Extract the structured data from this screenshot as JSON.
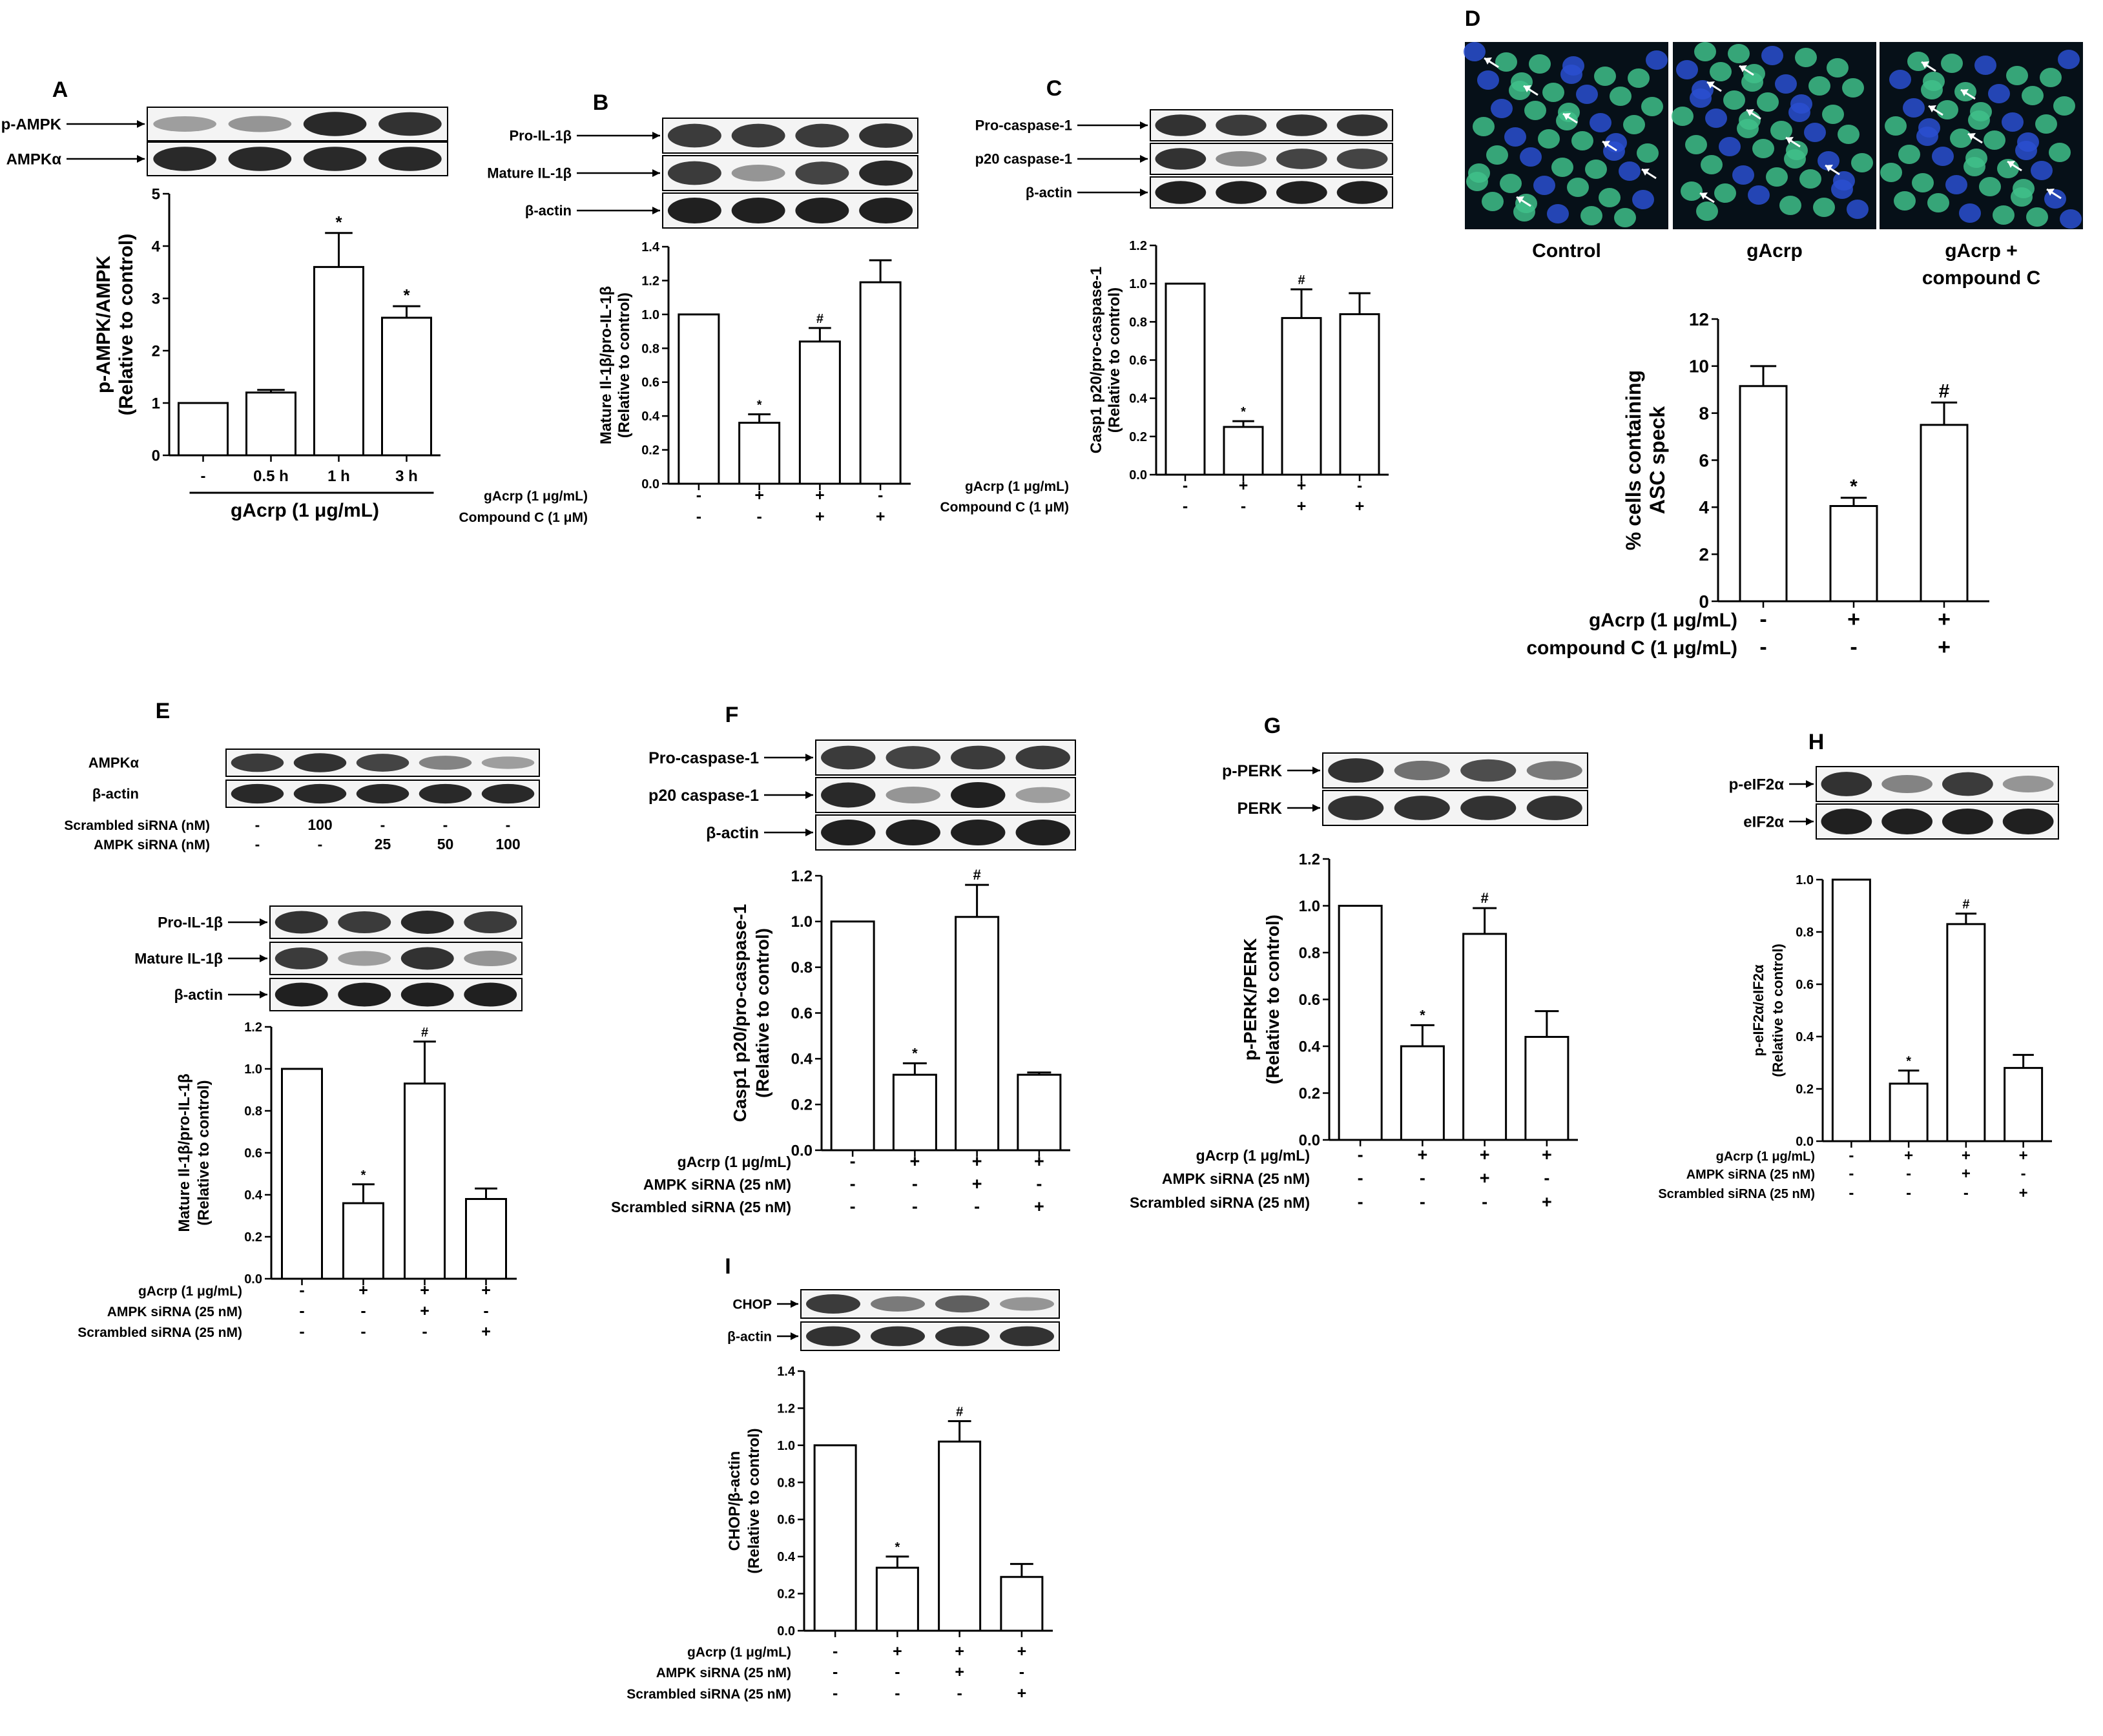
{
  "figure": {
    "panels": [
      {
        "letter": "A",
        "blot_rows": [
          {
            "label": "p-AMPK",
            "arrow": true,
            "bands": [
              0.25,
              0.3,
              0.9,
              0.85
            ]
          },
          {
            "label": "AMPKα",
            "arrow": true,
            "bands": [
              0.9,
              0.9,
              0.9,
              0.9
            ]
          }
        ],
        "ylabel": [
          "p-AMPK/AMPK",
          "(Relative to control)"
        ],
        "ylim": [
          0,
          5
        ],
        "yticks": [
          0,
          1,
          2,
          3,
          4,
          5
        ],
        "bars": [
          {
            "value": 1.0,
            "error": 0.0,
            "mark": ""
          },
          {
            "value": 1.2,
            "error": 0.05,
            "mark": ""
          },
          {
            "value": 3.6,
            "error": 0.65,
            "mark": "*"
          },
          {
            "value": 2.63,
            "error": 0.22,
            "mark": "*"
          }
        ],
        "tick_labels": [
          "-",
          "0.5 h",
          "1 h",
          "3 h"
        ],
        "group_label": "gAcrp (1 μg/mL)"
      },
      {
        "letter": "B",
        "blot_rows": [
          {
            "label": "Pro-IL-1β",
            "arrow": true,
            "bands": [
              0.8,
              0.8,
              0.8,
              0.85
            ]
          },
          {
            "label": "Mature IL-1β",
            "arrow": true,
            "bands": [
              0.8,
              0.3,
              0.75,
              0.9
            ]
          },
          {
            "label": "β-actin",
            "arrow": true,
            "bands": [
              0.95,
              0.95,
              0.95,
              0.95
            ]
          }
        ],
        "ylabel": [
          "Mature Il-1β/pro-IL-1β",
          "(Relative to control)"
        ],
        "ylim": [
          0,
          1.4
        ],
        "yticks": [
          0.0,
          0.2,
          0.4,
          0.6,
          0.8,
          1.0,
          1.2,
          1.4
        ],
        "bars": [
          {
            "value": 1.0,
            "error": 0.0,
            "mark": ""
          },
          {
            "value": 0.36,
            "error": 0.05,
            "mark": "*"
          },
          {
            "value": 0.84,
            "error": 0.08,
            "mark": "#"
          },
          {
            "value": 1.19,
            "error": 0.13,
            "mark": ""
          }
        ],
        "conditions": [
          {
            "label": "gAcrp (1 μg/mL)",
            "signs": [
              "-",
              "+",
              "+",
              "-"
            ]
          },
          {
            "label": "Compound C (1 μM)",
            "signs": [
              "-",
              "-",
              "+",
              "+"
            ]
          }
        ]
      },
      {
        "letter": "C",
        "blot_rows": [
          {
            "label": "Pro-caspase-1",
            "arrow": true,
            "bands": [
              0.85,
              0.8,
              0.85,
              0.85
            ]
          },
          {
            "label": "p20 caspase-1",
            "arrow": true,
            "bands": [
              0.85,
              0.35,
              0.75,
              0.75
            ]
          },
          {
            "label": "β-actin",
            "arrow": true,
            "bands": [
              0.95,
              0.95,
              0.95,
              0.95
            ]
          }
        ],
        "ylabel": [
          "Casp1 p20/pro-caspase-1",
          "(Relative to control)"
        ],
        "ylim": [
          0,
          1.2
        ],
        "yticks": [
          0.0,
          0.2,
          0.4,
          0.6,
          0.8,
          1.0,
          1.2
        ],
        "bars": [
          {
            "value": 1.0,
            "error": 0.0,
            "mark": ""
          },
          {
            "value": 0.25,
            "error": 0.03,
            "mark": "*"
          },
          {
            "value": 0.82,
            "error": 0.15,
            "mark": "#"
          },
          {
            "value": 0.84,
            "error": 0.11,
            "mark": ""
          }
        ],
        "conditions": [
          {
            "label": "gAcrp (1 μg/mL)",
            "signs": [
              "-",
              "+",
              "+",
              "-"
            ]
          },
          {
            "label": "Compound C (1 μM)",
            "signs": [
              "-",
              "-",
              "+",
              "+"
            ]
          }
        ]
      },
      {
        "letter": "D",
        "images": [
          "Control",
          "gAcrp",
          "gAcrp +",
          "compound C"
        ],
        "ylabel": [
          "% cells containing",
          "ASC speck"
        ],
        "ylim": [
          0,
          12
        ],
        "yticks": [
          0,
          2,
          4,
          6,
          8,
          10,
          12
        ],
        "bars": [
          {
            "value": 9.15,
            "error": 0.85,
            "mark": ""
          },
          {
            "value": 4.05,
            "error": 0.35,
            "mark": "*"
          },
          {
            "value": 7.5,
            "error": 0.95,
            "mark": "#"
          }
        ],
        "conditions": [
          {
            "label": "gAcrp (1 μg/mL)",
            "signs": [
              "-",
              "+",
              "+"
            ]
          },
          {
            "label": "compound C (1 μg/mL)",
            "signs": [
              "-",
              "-",
              "+"
            ]
          }
        ]
      },
      {
        "letter": "E",
        "blot_rows_top": [
          {
            "label": "AMPKα",
            "arrow": false,
            "bands": [
              0.8,
              0.85,
              0.75,
              0.4,
              0.25
            ]
          },
          {
            "label": "β-actin",
            "arrow": false,
            "bands": [
              0.9,
              0.9,
              0.9,
              0.9,
              0.9
            ]
          }
        ],
        "top_conditions": [
          {
            "label": "Scrambled siRNA (nM)",
            "signs": [
              "-",
              "100",
              "-",
              "-",
              "-"
            ]
          },
          {
            "label": "AMPK siRNA (nM)",
            "signs": [
              "-",
              "-",
              "25",
              "50",
              "100"
            ]
          }
        ],
        "blot_rows": [
          {
            "label": "Pro-IL-1β",
            "arrow": true,
            "bands": [
              0.85,
              0.8,
              0.9,
              0.8
            ]
          },
          {
            "label": "Mature IL-1β",
            "arrow": true,
            "bands": [
              0.8,
              0.25,
              0.85,
              0.3
            ]
          },
          {
            "label": "β-actin",
            "arrow": true,
            "bands": [
              0.95,
              0.95,
              0.95,
              0.95
            ]
          }
        ],
        "ylabel": [
          "Mature Il-1β/pro-IL-1β",
          "(Relative to control)"
        ],
        "ylim": [
          0,
          1.2
        ],
        "yticks": [
          0.0,
          0.2,
          0.4,
          0.6,
          0.8,
          1.0,
          1.2
        ],
        "bars": [
          {
            "value": 1.0,
            "error": 0.0,
            "mark": ""
          },
          {
            "value": 0.36,
            "error": 0.09,
            "mark": "*"
          },
          {
            "value": 0.93,
            "error": 0.2,
            "mark": "#"
          },
          {
            "value": 0.38,
            "error": 0.05,
            "mark": ""
          }
        ],
        "conditions": [
          {
            "label": "gAcrp (1 μg/mL)",
            "signs": [
              "-",
              "+",
              "+",
              "+"
            ]
          },
          {
            "label": "AMPK siRNA (25 nM)",
            "signs": [
              "-",
              "-",
              "+",
              "-"
            ]
          },
          {
            "label": "Scrambled siRNA (25 nM)",
            "signs": [
              "-",
              "-",
              "-",
              "+"
            ]
          }
        ]
      },
      {
        "letter": "F",
        "blot_rows": [
          {
            "label": "Pro-caspase-1",
            "arrow": true,
            "bands": [
              0.8,
              0.75,
              0.8,
              0.8
            ]
          },
          {
            "label": "p20 caspase-1",
            "arrow": true,
            "bands": [
              0.9,
              0.3,
              0.95,
              0.25
            ]
          },
          {
            "label": "β-actin",
            "arrow": true,
            "bands": [
              0.95,
              0.95,
              0.95,
              0.95
            ]
          }
        ],
        "ylabel": [
          "Casp1 p20/pro-caspase-1",
          "(Relative to control)"
        ],
        "ylim": [
          0,
          1.2
        ],
        "yticks": [
          0.0,
          0.2,
          0.4,
          0.6,
          0.8,
          1.0,
          1.2
        ],
        "bars": [
          {
            "value": 1.0,
            "error": 0.0,
            "mark": ""
          },
          {
            "value": 0.33,
            "error": 0.05,
            "mark": "*"
          },
          {
            "value": 1.02,
            "error": 0.14,
            "mark": "#"
          },
          {
            "value": 0.33,
            "error": 0.01,
            "mark": ""
          }
        ],
        "conditions": [
          {
            "label": "gAcrp (1 μg/mL)",
            "signs": [
              "-",
              "+",
              "+",
              "+"
            ]
          },
          {
            "label": "AMPK siRNA (25 nM)",
            "signs": [
              "-",
              "-",
              "+",
              "-"
            ]
          },
          {
            "label": "Scrambled siRNA (25 nM)",
            "signs": [
              "-",
              "-",
              "-",
              "+"
            ]
          }
        ]
      },
      {
        "letter": "G",
        "blot_rows": [
          {
            "label": "p-PERK",
            "arrow": true,
            "bands": [
              0.85,
              0.5,
              0.7,
              0.45
            ]
          },
          {
            "label": "PERK",
            "arrow": true,
            "bands": [
              0.85,
              0.85,
              0.85,
              0.85
            ]
          }
        ],
        "ylabel": [
          "p-PERK/PERK",
          "(Relative to control)"
        ],
        "ylim": [
          0,
          1.2
        ],
        "yticks": [
          0.0,
          0.2,
          0.4,
          0.6,
          0.8,
          1.0,
          1.2
        ],
        "bars": [
          {
            "value": 1.0,
            "error": 0.0,
            "mark": ""
          },
          {
            "value": 0.4,
            "error": 0.09,
            "mark": "*"
          },
          {
            "value": 0.88,
            "error": 0.11,
            "mark": "#"
          },
          {
            "value": 0.44,
            "error": 0.11,
            "mark": ""
          }
        ],
        "conditions": [
          {
            "label": "gAcrp (1 μg/mL)",
            "signs": [
              "-",
              "+",
              "+",
              "+"
            ]
          },
          {
            "label": "AMPK siRNA (25 nM)",
            "signs": [
              "-",
              "-",
              "+",
              "-"
            ]
          },
          {
            "label": "Scrambled siRNA (25 nM)",
            "signs": [
              "-",
              "-",
              "-",
              "+"
            ]
          }
        ]
      },
      {
        "letter": "H",
        "blot_rows": [
          {
            "label": "p-eIF2α",
            "arrow": true,
            "bands": [
              0.85,
              0.4,
              0.8,
              0.3
            ]
          },
          {
            "label": "eIF2α",
            "arrow": true,
            "bands": [
              0.95,
              0.95,
              0.95,
              0.95
            ]
          }
        ],
        "ylabel": [
          "p-eIF2α/eIF2α",
          "(Relative to control)"
        ],
        "ylim": [
          0,
          1.0
        ],
        "yticks": [
          0.0,
          0.2,
          0.4,
          0.6,
          0.8,
          1.0
        ],
        "bars": [
          {
            "value": 1.0,
            "error": 0.0,
            "mark": ""
          },
          {
            "value": 0.22,
            "error": 0.05,
            "mark": "*"
          },
          {
            "value": 0.83,
            "error": 0.04,
            "mark": "#"
          },
          {
            "value": 0.28,
            "error": 0.05,
            "mark": ""
          }
        ],
        "conditions": [
          {
            "label": "gAcrp (1 μg/mL)",
            "signs": [
              "-",
              "+",
              "+",
              "+"
            ]
          },
          {
            "label": "AMPK siRNA (25 nM)",
            "signs": [
              "-",
              "-",
              "+",
              "-"
            ]
          },
          {
            "label": "Scrambled siRNA (25 nM)",
            "signs": [
              "-",
              "-",
              "-",
              "+"
            ]
          }
        ]
      },
      {
        "letter": "I",
        "blot_rows": [
          {
            "label": "CHOP",
            "arrow": true,
            "bands": [
              0.8,
              0.45,
              0.6,
              0.3
            ]
          },
          {
            "label": "β-actin",
            "arrow": true,
            "bands": [
              0.85,
              0.85,
              0.85,
              0.85
            ]
          }
        ],
        "ylabel": [
          "CHOP/β-actin",
          "(Relative to control)"
        ],
        "ylim": [
          0,
          1.4
        ],
        "yticks": [
          0.0,
          0.2,
          0.4,
          0.6,
          0.8,
          1.0,
          1.2,
          1.4
        ],
        "bars": [
          {
            "value": 1.0,
            "error": 0.0,
            "mark": ""
          },
          {
            "value": 0.34,
            "error": 0.06,
            "mark": "*"
          },
          {
            "value": 1.02,
            "error": 0.11,
            "mark": "#"
          },
          {
            "value": 0.29,
            "error": 0.07,
            "mark": ""
          }
        ],
        "conditions": [
          {
            "label": "gAcrp (1 μg/mL)",
            "signs": [
              "-",
              "+",
              "+",
              "+"
            ]
          },
          {
            "label": "AMPK siRNA (25 nM)",
            "signs": [
              "-",
              "-",
              "+",
              "-"
            ]
          },
          {
            "label": "Scrambled siRNA (25 nM)",
            "signs": [
              "-",
              "-",
              "-",
              "+"
            ]
          }
        ]
      }
    ]
  }
}
